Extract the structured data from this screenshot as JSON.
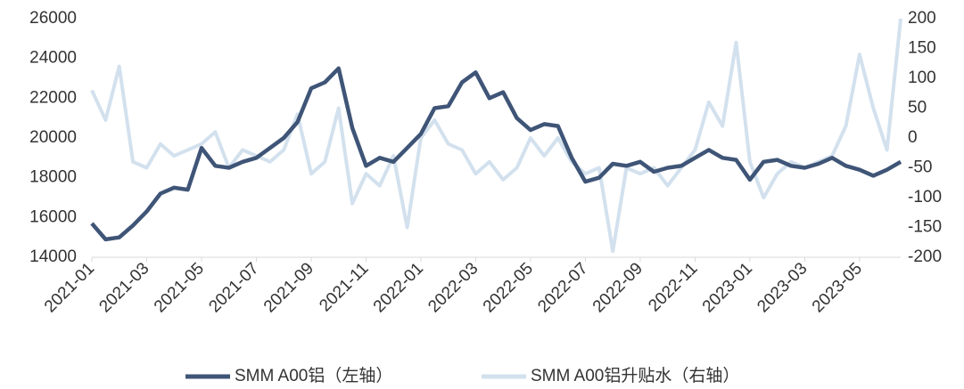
{
  "chart_data": {
    "type": "line",
    "categories": [
      "2021-01",
      null,
      null,
      null,
      "2021-03",
      null,
      null,
      null,
      "2021-05",
      null,
      null,
      null,
      "2021-07",
      null,
      null,
      null,
      "2021-09",
      null,
      null,
      null,
      "2021-11",
      null,
      null,
      null,
      "2022-01",
      null,
      null,
      null,
      "2022-03",
      null,
      null,
      null,
      "2022-05",
      null,
      null,
      null,
      "2022-07",
      null,
      null,
      null,
      "2022-09",
      null,
      null,
      null,
      "2022-11",
      null,
      null,
      null,
      "2023-01",
      null,
      null,
      null,
      "2023-03",
      null,
      null,
      null,
      "2023-05",
      null,
      null,
      null
    ],
    "series": [
      {
        "name": "SMM A00铝（左轴）",
        "color": "#3f5577",
        "values": [
          15700,
          14900,
          15000,
          15600,
          16300,
          17200,
          17500,
          17400,
          19500,
          18600,
          18500,
          18800,
          19000,
          19500,
          20000,
          20800,
          22500,
          22800,
          23500,
          20500,
          18600,
          19000,
          18800,
          19500,
          20200,
          21500,
          21600,
          22800,
          23300,
          22000,
          22300,
          21000,
          20400,
          20700,
          20600,
          19000,
          17800,
          18000,
          18700,
          18600,
          18800,
          18300,
          18500,
          18600,
          19000,
          19400,
          19000,
          18900,
          17900,
          18800,
          18900,
          18600,
          18500,
          18700,
          19000,
          18600,
          18400,
          18100,
          18400,
          18800
        ]
      },
      {
        "name": "SMM A00铝升贴水（右轴）",
        "color": "#d3e1ee",
        "axis": "y2",
        "values": [
          80,
          30,
          120,
          -40,
          -50,
          -10,
          -30,
          -20,
          -10,
          10,
          -50,
          -20,
          -30,
          -40,
          -20,
          40,
          -60,
          -40,
          50,
          -110,
          -60,
          -80,
          -30,
          -150,
          0,
          30,
          -10,
          -20,
          -60,
          -40,
          -70,
          -50,
          0,
          -30,
          0,
          -40,
          -60,
          -50,
          -190,
          -50,
          -60,
          -50,
          -80,
          -50,
          -20,
          60,
          20,
          160,
          -40,
          -100,
          -60,
          -40,
          -50,
          -40,
          -30,
          20,
          140,
          50,
          -20,
          200
        ]
      }
    ],
    "ylim": [
      14000,
      26000
    ],
    "yticks": [
      14000,
      16000,
      18000,
      20000,
      22000,
      24000,
      26000
    ],
    "y2lim": [
      -200,
      200
    ],
    "y2ticks": [
      -200,
      -150,
      -100,
      -50,
      0,
      50,
      100,
      150,
      200
    ]
  }
}
